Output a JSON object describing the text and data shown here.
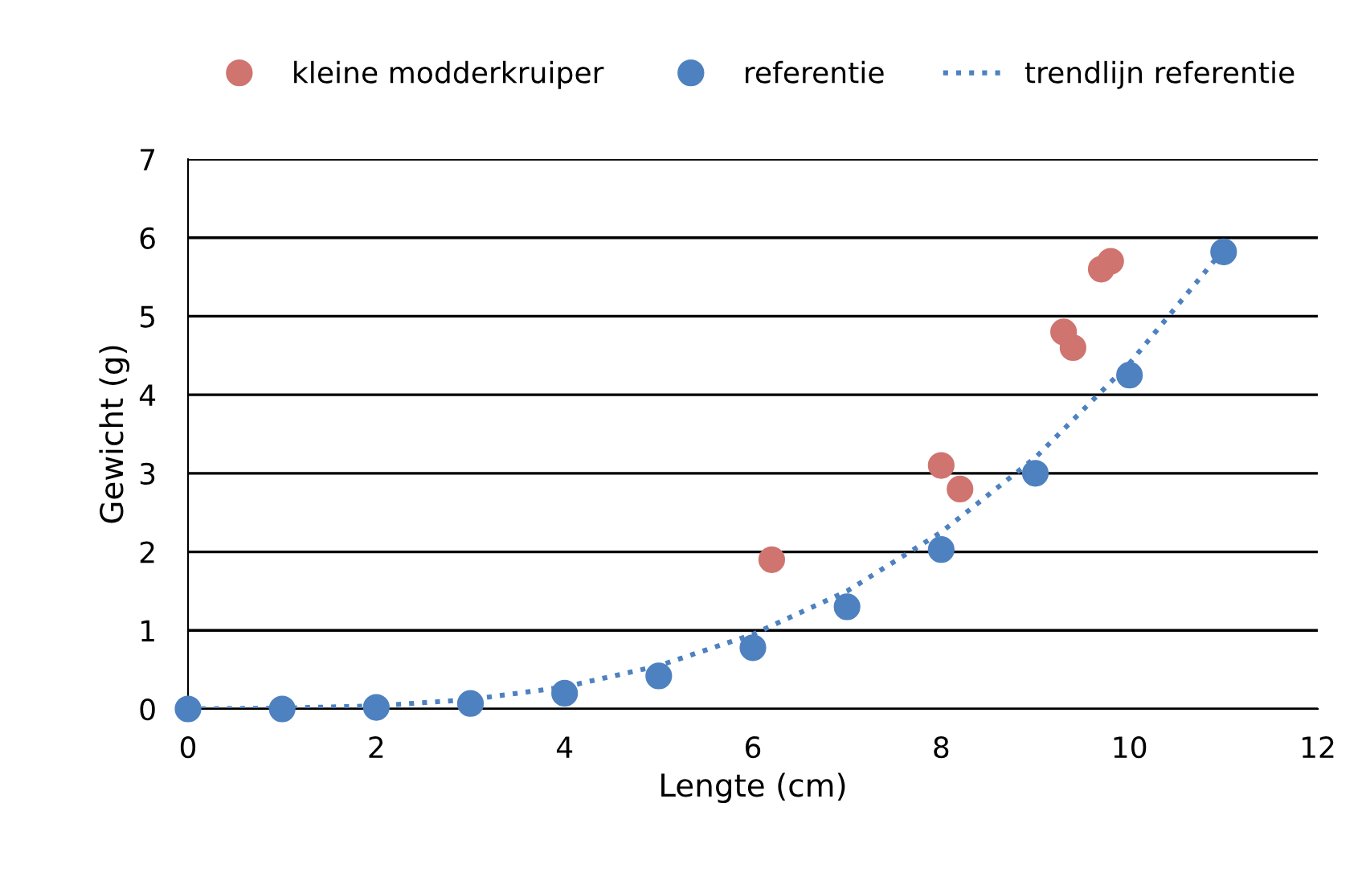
{
  "chart_data": {
    "type": "scatter",
    "xlabel": "Lengte (cm)",
    "ylabel": "Gewicht (g)",
    "xlim": [
      0,
      12
    ],
    "xticks": [
      0,
      2,
      4,
      6,
      8,
      10,
      12
    ],
    "ylim": [
      0,
      7
    ],
    "yticks": [
      0,
      1,
      2,
      3,
      4,
      5,
      6,
      7
    ],
    "grid": "y",
    "legend": "top",
    "marker": "circle",
    "series": [
      {
        "name": "kleine modderkruiper",
        "color": "#d07470",
        "x": [
          6.2,
          8.0,
          8.2,
          9.3,
          9.4,
          9.7,
          9.8
        ],
        "values": [
          1.9,
          3.1,
          2.8,
          4.8,
          4.6,
          5.6,
          5.7
        ]
      },
      {
        "name": "referentie",
        "color": "#4e81c0",
        "x": [
          0,
          1,
          2,
          3,
          4,
          5,
          6,
          7,
          8,
          9,
          10,
          11
        ],
        "values": [
          0,
          0,
          0.02,
          0.07,
          0.2,
          0.42,
          0.78,
          1.3,
          2.03,
          3.0,
          4.25,
          5.82
        ]
      },
      {
        "name": "trendlijn referentie",
        "type": "line",
        "line_style": "dotted",
        "marker": "none",
        "color": "#4e81c0",
        "x": [
          0,
          1,
          2,
          3,
          4,
          5,
          6,
          7,
          8,
          9,
          10,
          11
        ],
        "values": [
          0,
          0.01,
          0.04,
          0.12,
          0.28,
          0.55,
          0.95,
          1.5,
          2.25,
          3.2,
          4.4,
          5.85
        ]
      }
    ]
  }
}
